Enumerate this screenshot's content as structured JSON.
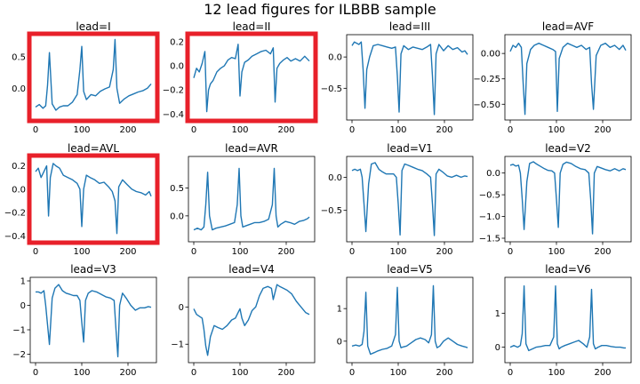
{
  "title": "12 lead figures for ILBBB sample",
  "line_color": "#1f77b4",
  "highlight_color": "#e8202a",
  "chart_data": [
    {
      "type": "line",
      "title": "lead=I",
      "xlim": [
        0,
        250
      ],
      "xticks": [
        0,
        100,
        200
      ],
      "ylim": [
        -0.45,
        0.8
      ],
      "yticks": [
        0.5,
        0.0
      ],
      "ytick_labels": [
        "0.5",
        "0.0"
      ],
      "highlighted": true,
      "x": [
        0,
        8,
        16,
        22,
        26,
        30,
        36,
        44,
        52,
        60,
        70,
        80,
        90,
        96,
        100,
        104,
        110,
        120,
        130,
        140,
        150,
        160,
        168,
        172,
        176,
        182,
        192,
        202,
        212,
        222,
        232,
        242,
        250
      ],
      "y": [
        -0.3,
        -0.26,
        -0.32,
        -0.28,
        0.05,
        0.57,
        -0.25,
        -0.35,
        -0.3,
        -0.28,
        -0.28,
        -0.22,
        -0.1,
        0.3,
        0.67,
        -0.05,
        -0.18,
        -0.1,
        -0.12,
        -0.05,
        -0.01,
        0.02,
        0.3,
        0.78,
        0.0,
        -0.24,
        -0.17,
        -0.12,
        -0.09,
        -0.06,
        -0.04,
        0.0,
        0.07
      ]
    },
    {
      "type": "line",
      "title": "lead=II",
      "xlim": [
        0,
        250
      ],
      "xticks": [
        0,
        100,
        200
      ],
      "ylim": [
        -0.42,
        0.23
      ],
      "yticks": [
        0.2,
        0.0,
        -0.2,
        -0.4
      ],
      "ytick_labels": [
        "0.2",
        "0.0",
        "−0.2",
        "−0.4"
      ],
      "highlighted": true,
      "x": [
        0,
        6,
        12,
        18,
        24,
        28,
        32,
        36,
        42,
        50,
        58,
        66,
        74,
        82,
        90,
        96,
        100,
        104,
        110,
        118,
        126,
        136,
        146,
        156,
        166,
        172,
        176,
        180,
        186,
        194,
        202,
        210,
        220,
        230,
        240,
        250
      ],
      "y": [
        -0.1,
        -0.02,
        -0.05,
        0.02,
        0.12,
        -0.38,
        -0.2,
        -0.15,
        -0.12,
        -0.05,
        -0.02,
        0.0,
        0.05,
        0.07,
        0.06,
        0.18,
        -0.25,
        -0.05,
        0.03,
        0.05,
        0.08,
        0.1,
        0.12,
        0.13,
        0.1,
        0.15,
        -0.3,
        -0.02,
        0.02,
        0.05,
        0.07,
        0.04,
        0.06,
        0.04,
        0.08,
        0.04
      ]
    },
    {
      "type": "line",
      "title": "lead=III",
      "xlim": [
        0,
        250
      ],
      "xticks": [
        0,
        100,
        200
      ],
      "ylim": [
        -0.95,
        0.3
      ],
      "yticks": [
        0.0,
        -0.5
      ],
      "ytick_labels": [
        "0.0",
        "−0.5"
      ],
      "highlighted": false,
      "x": [
        0,
        5,
        10,
        15,
        20,
        24,
        28,
        32,
        38,
        46,
        56,
        66,
        76,
        86,
        94,
        98,
        102,
        106,
        112,
        122,
        132,
        142,
        152,
        162,
        170,
        174,
        178,
        182,
        188,
        198,
        208,
        218,
        228,
        238,
        244,
        250
      ],
      "y": [
        0.18,
        0.24,
        0.22,
        0.2,
        0.24,
        -0.2,
        -0.82,
        -0.2,
        0.0,
        0.18,
        0.2,
        0.18,
        0.16,
        0.14,
        0.16,
        -0.3,
        -0.88,
        0.05,
        0.18,
        0.12,
        0.16,
        0.14,
        0.12,
        0.16,
        0.2,
        -0.3,
        -0.92,
        0.05,
        0.2,
        0.1,
        0.18,
        0.12,
        0.15,
        0.08,
        0.1,
        0.04
      ]
    },
    {
      "type": "line",
      "title": "lead=AVF",
      "xlim": [
        0,
        250
      ],
      "xticks": [
        0,
        100,
        200
      ],
      "ylim": [
        -0.62,
        0.15
      ],
      "yticks": [
        0.0,
        -0.25,
        -0.5
      ],
      "ytick_labels": [
        "0.00",
        "−0.25",
        "−0.50"
      ],
      "highlighted": false,
      "x": [
        0,
        6,
        12,
        18,
        24,
        28,
        32,
        36,
        44,
        52,
        62,
        72,
        82,
        92,
        98,
        102,
        106,
        114,
        124,
        134,
        144,
        154,
        164,
        172,
        176,
        180,
        186,
        196,
        206,
        216,
        226,
        236,
        244,
        250
      ],
      "y": [
        0.02,
        0.08,
        0.06,
        0.1,
        0.06,
        -0.3,
        -0.6,
        -0.1,
        0.04,
        0.08,
        0.1,
        0.08,
        0.06,
        0.04,
        0.02,
        -0.57,
        -0.05,
        0.06,
        0.1,
        0.08,
        0.06,
        0.08,
        0.04,
        0.06,
        -0.3,
        -0.55,
        -0.02,
        0.08,
        0.1,
        0.06,
        0.08,
        0.04,
        0.08,
        0.03
      ]
    },
    {
      "type": "line",
      "title": "lead=AVL",
      "xlim": [
        0,
        250
      ],
      "xticks": [
        0,
        100,
        200
      ],
      "ylim": [
        -0.42,
        0.25
      ],
      "yticks": [
        0.2,
        0.0,
        -0.2,
        -0.4
      ],
      "ytick_labels": [
        "0.2",
        "0.0",
        "−0.2",
        "−0.4"
      ],
      "highlighted": true,
      "x": [
        0,
        6,
        12,
        18,
        24,
        28,
        32,
        38,
        44,
        52,
        60,
        70,
        80,
        90,
        96,
        100,
        104,
        110,
        118,
        128,
        138,
        148,
        158,
        166,
        172,
        176,
        180,
        188,
        198,
        208,
        218,
        228,
        238,
        246,
        250
      ],
      "y": [
        0.15,
        0.18,
        0.1,
        0.15,
        0.2,
        -0.23,
        0.1,
        0.22,
        0.2,
        0.18,
        0.12,
        0.1,
        0.08,
        0.05,
        0.0,
        -0.32,
        0.0,
        0.12,
        0.1,
        0.08,
        0.05,
        0.06,
        0.02,
        -0.02,
        -0.1,
        -0.38,
        0.02,
        0.08,
        0.04,
        0.0,
        -0.02,
        -0.03,
        -0.05,
        -0.02,
        -0.06
      ]
    },
    {
      "type": "line",
      "title": "lead=AVR",
      "xlim": [
        0,
        250
      ],
      "xticks": [
        0,
        100,
        200
      ],
      "ylim": [
        -0.4,
        1.0
      ],
      "yticks": [
        0.5,
        0.0
      ],
      "ytick_labels": [
        "0.5",
        "0.0"
      ],
      "highlighted": false,
      "x": [
        0,
        8,
        16,
        22,
        26,
        30,
        34,
        40,
        48,
        58,
        68,
        78,
        88,
        94,
        98,
        102,
        106,
        112,
        122,
        132,
        142,
        152,
        162,
        170,
        174,
        178,
        182,
        188,
        198,
        208,
        218,
        228,
        238,
        246,
        250
      ],
      "y": [
        -0.25,
        -0.22,
        -0.25,
        -0.2,
        0.2,
        0.78,
        0.0,
        -0.25,
        -0.22,
        -0.2,
        -0.18,
        -0.15,
        -0.12,
        0.2,
        0.85,
        0.0,
        -0.2,
        -0.18,
        -0.15,
        -0.12,
        -0.12,
        -0.1,
        -0.06,
        0.2,
        0.85,
        0.0,
        -0.2,
        -0.15,
        -0.1,
        -0.12,
        -0.15,
        -0.1,
        -0.08,
        -0.05,
        -0.02
      ]
    },
    {
      "type": "line",
      "title": "lead=V1",
      "xlim": [
        0,
        250
      ],
      "xticks": [
        0,
        100,
        200
      ],
      "ylim": [
        -0.92,
        0.26
      ],
      "yticks": [
        0.0,
        -0.5
      ],
      "ytick_labels": [
        "0.0",
        "−0.5"
      ],
      "highlighted": false,
      "x": [
        0,
        6,
        12,
        18,
        22,
        26,
        30,
        36,
        42,
        50,
        58,
        66,
        74,
        82,
        90,
        96,
        100,
        104,
        108,
        114,
        122,
        132,
        142,
        152,
        162,
        170,
        174,
        178,
        182,
        188,
        196,
        206,
        216,
        226,
        236,
        244,
        250
      ],
      "y": [
        0.1,
        0.12,
        0.1,
        0.12,
        0.0,
        -0.4,
        -0.82,
        -0.1,
        0.2,
        0.22,
        0.12,
        0.08,
        0.05,
        0.05,
        0.05,
        0.0,
        -0.4,
        -0.87,
        0.1,
        0.2,
        0.18,
        0.15,
        0.12,
        0.1,
        0.05,
        0.0,
        -0.4,
        -0.88,
        0.05,
        0.12,
        0.08,
        0.02,
        0.0,
        0.03,
        0.0,
        0.02,
        0.01
      ]
    },
    {
      "type": "line",
      "title": "lead=V2",
      "xlim": [
        0,
        250
      ],
      "xticks": [
        0,
        100,
        200
      ],
      "ylim": [
        -1.5,
        0.3
      ],
      "yticks": [
        0.0,
        -0.5,
        -1.0,
        -1.5
      ],
      "ytick_labels": [
        "0.0",
        "−0.5",
        "−1.0",
        "−1.5"
      ],
      "highlighted": false,
      "x": [
        0,
        6,
        12,
        18,
        22,
        26,
        30,
        36,
        42,
        50,
        58,
        66,
        74,
        82,
        90,
        96,
        100,
        104,
        108,
        114,
        122,
        132,
        142,
        152,
        162,
        170,
        174,
        178,
        182,
        188,
        196,
        206,
        216,
        226,
        236,
        244,
        250
      ],
      "y": [
        0.18,
        0.2,
        0.16,
        0.18,
        0.0,
        -0.6,
        -1.3,
        -0.2,
        0.22,
        0.26,
        0.2,
        0.15,
        0.1,
        0.06,
        0.05,
        0.0,
        -0.6,
        -1.25,
        0.0,
        0.2,
        0.25,
        0.22,
        0.15,
        0.1,
        0.08,
        0.0,
        -0.6,
        -1.4,
        0.0,
        0.15,
        0.12,
        0.08,
        0.05,
        0.1,
        0.05,
        0.1,
        0.08
      ]
    },
    {
      "type": "line",
      "title": "lead=V3",
      "xlim": [
        0,
        250
      ],
      "xticks": [
        0,
        100,
        200
      ],
      "ylim": [
        -2.2,
        1.0
      ],
      "yticks": [
        1,
        0,
        -1,
        -2
      ],
      "ytick_labels": [
        "1",
        "0",
        "−1",
        "−2"
      ],
      "highlighted": false,
      "x": [
        0,
        6,
        12,
        18,
        22,
        26,
        30,
        36,
        42,
        50,
        58,
        66,
        74,
        82,
        90,
        96,
        100,
        104,
        108,
        114,
        122,
        132,
        142,
        152,
        162,
        170,
        174,
        178,
        182,
        188,
        196,
        206,
        216,
        226,
        236,
        244,
        250
      ],
      "y": [
        0.55,
        0.55,
        0.5,
        0.6,
        0.0,
        -0.8,
        -1.6,
        0.3,
        0.7,
        0.85,
        0.6,
        0.5,
        0.45,
        0.4,
        0.4,
        0.2,
        -0.7,
        -1.5,
        0.2,
        0.5,
        0.6,
        0.55,
        0.45,
        0.35,
        0.3,
        0.2,
        -1.0,
        -2.1,
        0.0,
        0.5,
        0.3,
        0.0,
        -0.2,
        -0.1,
        -0.1,
        -0.05,
        -0.08
      ]
    },
    {
      "type": "line",
      "title": "lead=V4",
      "xlim": [
        0,
        250
      ],
      "xticks": [
        0,
        100,
        200
      ],
      "ylim": [
        -1.4,
        0.7
      ],
      "yticks": [
        0,
        -1
      ],
      "ytick_labels": [
        "0",
        "−1"
      ],
      "highlighted": false,
      "x": [
        0,
        6,
        12,
        18,
        22,
        26,
        30,
        36,
        44,
        52,
        62,
        72,
        82,
        90,
        96,
        100,
        104,
        110,
        118,
        126,
        134,
        142,
        150,
        160,
        168,
        172,
        176,
        180,
        186,
        194,
        202,
        212,
        222,
        232,
        242,
        250
      ],
      "y": [
        -0.05,
        -0.2,
        -0.25,
        -0.3,
        -0.6,
        -1.05,
        -1.3,
        -0.8,
        -0.5,
        -0.55,
        -0.6,
        -0.5,
        -0.35,
        -0.3,
        -0.15,
        -0.05,
        -0.3,
        -0.5,
        -0.35,
        -0.1,
        0.0,
        0.3,
        0.5,
        0.55,
        0.5,
        0.2,
        0.4,
        0.6,
        0.55,
        0.5,
        0.45,
        0.35,
        0.15,
        0.0,
        -0.15,
        -0.2
      ]
    },
    {
      "type": "line",
      "title": "lead=V5",
      "xlim": [
        0,
        250
      ],
      "xticks": [
        0,
        100,
        200
      ],
      "ylim": [
        -0.55,
        1.85
      ],
      "yticks": [
        1,
        0
      ],
      "ytick_labels": [
        "1",
        "0"
      ],
      "highlighted": false,
      "x": [
        0,
        8,
        16,
        22,
        26,
        30,
        34,
        40,
        48,
        56,
        66,
        76,
        86,
        94,
        98,
        102,
        106,
        110,
        118,
        128,
        138,
        148,
        158,
        166,
        172,
        176,
        180,
        184,
        190,
        198,
        208,
        218,
        228,
        238,
        246,
        250
      ],
      "y": [
        -0.15,
        -0.12,
        -0.15,
        -0.1,
        0.3,
        1.5,
        -0.15,
        -0.4,
        -0.35,
        -0.3,
        -0.25,
        -0.22,
        -0.15,
        0.2,
        1.65,
        0.0,
        -0.2,
        -0.18,
        -0.15,
        -0.05,
        0.05,
        0.1,
        0.05,
        -0.05,
        0.2,
        1.7,
        0.0,
        -0.2,
        -0.15,
        0.0,
        0.1,
        0.0,
        -0.1,
        -0.15,
        -0.18,
        -0.2
      ]
    },
    {
      "type": "line",
      "title": "lead=V6",
      "xlim": [
        0,
        250
      ],
      "xticks": [
        0,
        100,
        200
      ],
      "ylim": [
        -0.35,
        1.95
      ],
      "yticks": [
        1,
        0
      ],
      "ytick_labels": [
        "1",
        "0"
      ],
      "highlighted": false,
      "x": [
        0,
        8,
        16,
        22,
        26,
        30,
        34,
        40,
        48,
        56,
        66,
        76,
        86,
        94,
        98,
        102,
        106,
        110,
        118,
        128,
        138,
        148,
        158,
        166,
        172,
        176,
        180,
        184,
        190,
        198,
        208,
        218,
        228,
        238,
        246,
        250
      ],
      "y": [
        0.0,
        0.05,
        0.0,
        0.05,
        0.4,
        1.8,
        0.1,
        -0.1,
        -0.05,
        0.0,
        0.02,
        0.05,
        0.05,
        0.3,
        1.8,
        0.1,
        -0.05,
        0.0,
        0.05,
        0.1,
        0.15,
        0.2,
        0.1,
        0.0,
        0.3,
        1.7,
        0.1,
        -0.05,
        0.0,
        0.05,
        0.05,
        0.02,
        0.0,
        0.0,
        -0.02,
        -0.02
      ]
    }
  ]
}
